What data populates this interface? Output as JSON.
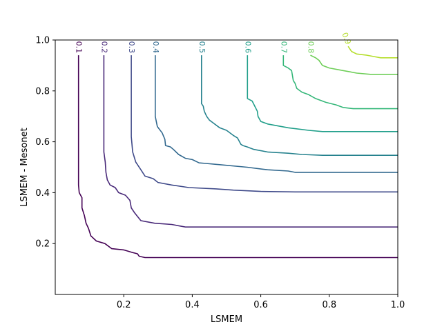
{
  "chart_data": {
    "type": "line",
    "subtype": "contour",
    "title": "",
    "xlabel": "LSMEM",
    "ylabel": "LSMEM - Mesonet",
    "xlim": [
      0.0,
      1.0
    ],
    "ylim": [
      0.0,
      1.0
    ],
    "xticks": [
      0.2,
      0.4,
      0.6,
      0.8,
      1.0
    ],
    "xtick_labels": [
      "0.2",
      "0.4",
      "0.6",
      "0.8",
      "1.0"
    ],
    "yticks": [
      0.2,
      0.4,
      0.6,
      0.8,
      1.0
    ],
    "ytick_labels": [
      "0.2",
      "0.4",
      "0.6",
      "0.8",
      "1.0"
    ],
    "grid": false,
    "colormap": "viridis",
    "series": [
      {
        "level": 0.1,
        "label": "0.1",
        "color": "#440154",
        "points": [
          [
            0.068,
            0.94
          ],
          [
            0.068,
            0.7
          ],
          [
            0.068,
            0.43
          ],
          [
            0.07,
            0.4
          ],
          [
            0.078,
            0.38
          ],
          [
            0.078,
            0.34
          ],
          [
            0.085,
            0.31
          ],
          [
            0.09,
            0.28
          ],
          [
            0.097,
            0.26
          ],
          [
            0.104,
            0.23
          ],
          [
            0.12,
            0.21
          ],
          [
            0.145,
            0.2
          ],
          [
            0.165,
            0.18
          ],
          [
            0.2,
            0.175
          ],
          [
            0.225,
            0.165
          ],
          [
            0.24,
            0.16
          ],
          [
            0.245,
            0.15
          ],
          [
            0.262,
            0.145
          ],
          [
            0.4,
            0.145
          ],
          [
            1.0,
            0.145
          ]
        ]
      },
      {
        "level": 0.2,
        "label": "0.2",
        "color": "#482878",
        "points": [
          [
            0.142,
            0.94
          ],
          [
            0.142,
            0.7
          ],
          [
            0.142,
            0.56
          ],
          [
            0.146,
            0.52
          ],
          [
            0.148,
            0.48
          ],
          [
            0.152,
            0.45
          ],
          [
            0.16,
            0.43
          ],
          [
            0.175,
            0.42
          ],
          [
            0.185,
            0.4
          ],
          [
            0.205,
            0.39
          ],
          [
            0.218,
            0.37
          ],
          [
            0.222,
            0.34
          ],
          [
            0.232,
            0.32
          ],
          [
            0.25,
            0.29
          ],
          [
            0.29,
            0.28
          ],
          [
            0.34,
            0.275
          ],
          [
            0.38,
            0.265
          ],
          [
            0.5,
            0.265
          ],
          [
            1.0,
            0.265
          ]
        ]
      },
      {
        "level": 0.3,
        "label": "0.3",
        "color": "#3e4989",
        "points": [
          [
            0.222,
            0.94
          ],
          [
            0.222,
            0.72
          ],
          [
            0.222,
            0.62
          ],
          [
            0.226,
            0.56
          ],
          [
            0.235,
            0.52
          ],
          [
            0.25,
            0.49
          ],
          [
            0.262,
            0.465
          ],
          [
            0.286,
            0.455
          ],
          [
            0.3,
            0.44
          ],
          [
            0.34,
            0.43
          ],
          [
            0.39,
            0.42
          ],
          [
            0.47,
            0.415
          ],
          [
            0.52,
            0.41
          ],
          [
            0.6,
            0.405
          ],
          [
            0.7,
            0.403
          ],
          [
            1.0,
            0.403
          ]
        ]
      },
      {
        "level": 0.4,
        "label": "0.4",
        "color": "#31688e",
        "points": [
          [
            0.292,
            0.94
          ],
          [
            0.292,
            0.8
          ],
          [
            0.292,
            0.7
          ],
          [
            0.298,
            0.66
          ],
          [
            0.312,
            0.635
          ],
          [
            0.32,
            0.61
          ],
          [
            0.322,
            0.585
          ],
          [
            0.336,
            0.58
          ],
          [
            0.345,
            0.57
          ],
          [
            0.36,
            0.55
          ],
          [
            0.38,
            0.535
          ],
          [
            0.4,
            0.53
          ],
          [
            0.42,
            0.517
          ],
          [
            0.44,
            0.515
          ],
          [
            0.48,
            0.51
          ],
          [
            0.56,
            0.5
          ],
          [
            0.62,
            0.49
          ],
          [
            0.68,
            0.485
          ],
          [
            0.7,
            0.48
          ],
          [
            1.0,
            0.48
          ]
        ]
      },
      {
        "level": 0.5,
        "label": "0.5",
        "color": "#26828e",
        "points": [
          [
            0.427,
            0.94
          ],
          [
            0.427,
            0.8
          ],
          [
            0.427,
            0.75
          ],
          [
            0.432,
            0.74
          ],
          [
            0.435,
            0.72
          ],
          [
            0.442,
            0.7
          ],
          [
            0.45,
            0.685
          ],
          [
            0.46,
            0.675
          ],
          [
            0.48,
            0.655
          ],
          [
            0.5,
            0.645
          ],
          [
            0.52,
            0.625
          ],
          [
            0.532,
            0.615
          ],
          [
            0.542,
            0.59
          ],
          [
            0.548,
            0.585
          ],
          [
            0.56,
            0.58
          ],
          [
            0.58,
            0.57
          ],
          [
            0.62,
            0.56
          ],
          [
            0.68,
            0.555
          ],
          [
            0.72,
            0.55
          ],
          [
            0.78,
            0.547
          ],
          [
            1.0,
            0.547
          ]
        ]
      },
      {
        "level": 0.6,
        "label": "0.6",
        "color": "#1f9e89",
        "points": [
          [
            0.561,
            0.94
          ],
          [
            0.561,
            0.8
          ],
          [
            0.561,
            0.77
          ],
          [
            0.575,
            0.76
          ],
          [
            0.59,
            0.72
          ],
          [
            0.592,
            0.7
          ],
          [
            0.6,
            0.68
          ],
          [
            0.62,
            0.67
          ],
          [
            0.68,
            0.655
          ],
          [
            0.74,
            0.645
          ],
          [
            0.78,
            0.64
          ],
          [
            0.8,
            0.64
          ],
          [
            1.0,
            0.64
          ]
        ]
      },
      {
        "level": 0.7,
        "label": "0.7",
        "color": "#35b779",
        "points": [
          [
            0.666,
            0.94
          ],
          [
            0.666,
            0.9
          ],
          [
            0.68,
            0.89
          ],
          [
            0.69,
            0.88
          ],
          [
            0.695,
            0.84
          ],
          [
            0.7,
            0.83
          ],
          [
            0.705,
            0.81
          ],
          [
            0.72,
            0.795
          ],
          [
            0.74,
            0.785
          ],
          [
            0.76,
            0.77
          ],
          [
            0.79,
            0.755
          ],
          [
            0.82,
            0.745
          ],
          [
            0.84,
            0.735
          ],
          [
            0.87,
            0.73
          ],
          [
            0.9,
            0.73
          ],
          [
            1.0,
            0.73
          ]
        ]
      },
      {
        "level": 0.8,
        "label": "0.8",
        "color": "#6ece58",
        "points": [
          [
            0.745,
            0.94
          ],
          [
            0.745,
            0.94
          ],
          [
            0.76,
            0.93
          ],
          [
            0.77,
            0.92
          ],
          [
            0.78,
            0.9
          ],
          [
            0.8,
            0.89
          ],
          [
            0.84,
            0.88
          ],
          [
            0.88,
            0.87
          ],
          [
            0.92,
            0.865
          ],
          [
            1.0,
            0.865
          ]
        ]
      },
      {
        "level": 0.9,
        "label": "0.9",
        "color": "#b5de2b",
        "points": [
          [
            0.855,
            0.975
          ],
          [
            0.865,
            0.955
          ],
          [
            0.88,
            0.945
          ],
          [
            0.91,
            0.94
          ],
          [
            0.93,
            0.935
          ],
          [
            0.95,
            0.93
          ],
          [
            1.0,
            0.93
          ]
        ]
      }
    ],
    "contour_label_positions": "top",
    "legend": "none"
  }
}
